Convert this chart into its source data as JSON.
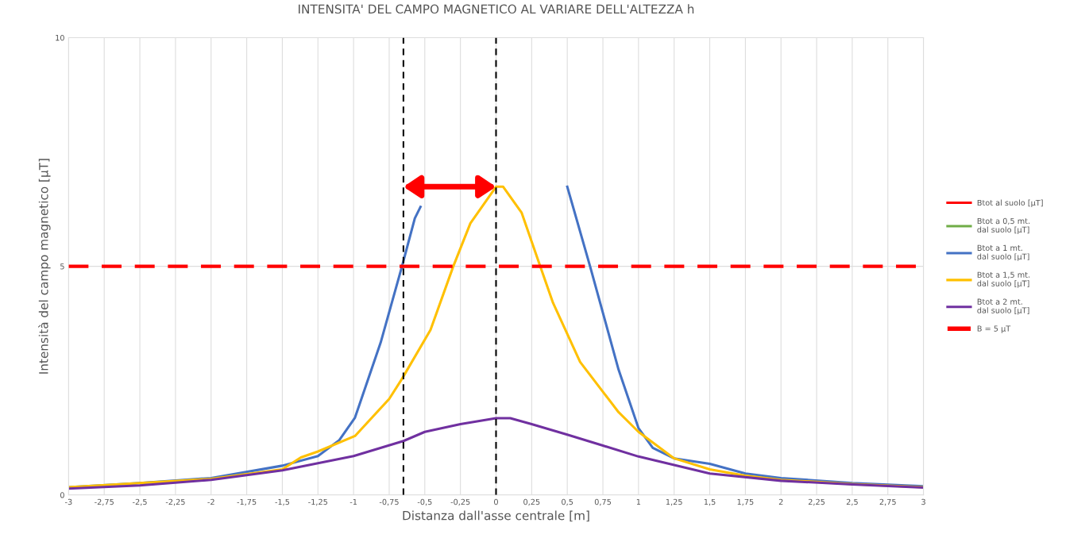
{
  "chart_data": {
    "type": "line",
    "title": "INTENSITA' DEL CAMPO MAGNETICO AL VARIARE DELL'ALTEZZA h",
    "xlabel": "Distanza dall'asse centrale [m]",
    "ylabel": "Intensità del campo magnetico [µT]",
    "xlim": [
      -3,
      3
    ],
    "xticks": [
      {
        "value": -3,
        "label": "-3"
      },
      {
        "value": -2.75,
        "label": "-2,75"
      },
      {
        "value": -2.5,
        "label": "-2,5"
      },
      {
        "value": -2.25,
        "label": "-2,25"
      },
      {
        "value": -2,
        "label": "-2"
      },
      {
        "value": -1.75,
        "label": "-1,75"
      },
      {
        "value": -1.5,
        "label": "-1,5"
      },
      {
        "value": -1.25,
        "label": "-1,25"
      },
      {
        "value": -1,
        "label": "-1"
      },
      {
        "value": -0.75,
        "label": "-0,75"
      },
      {
        "value": -0.5,
        "label": "-0,5"
      },
      {
        "value": -0.25,
        "label": "-0,25"
      },
      0,
      {
        "value": 0.25,
        "label": "0,25"
      },
      {
        "value": 0.5,
        "label": "0,5"
      },
      {
        "value": 0.75,
        "label": "0,75"
      },
      1,
      {
        "value": 1.25,
        "label": "1,25"
      },
      {
        "value": 1.5,
        "label": "1,5"
      },
      {
        "value": 1.75,
        "label": "1,75"
      },
      2,
      {
        "value": 2.25,
        "label": "2,25"
      },
      {
        "value": 2.5,
        "label": "2,5"
      },
      {
        "value": 2.75,
        "label": "2,75"
      },
      3
    ],
    "ylim": [
      0,
      10
    ],
    "yticks": [
      0,
      5,
      10
    ],
    "grid": true,
    "legend": "right",
    "marker": "none",
    "series": [
      {
        "name": "Btot al suolo [µT]",
        "color": "#ff0000"
      },
      {
        "name": "Btot a 0,5 mt.\ndal suolo [µT]",
        "color": "#70ad47"
      },
      {
        "name": "Btot a 1 mt.\ndal suolo [µT]",
        "color": "#4472c4",
        "x": [
          -3,
          -2.5,
          -2,
          -1.5,
          -1.25,
          -1.1,
          -0.99,
          -0.81,
          -0.66,
          -0.57,
          -0.53,
          0,
          0.5,
          0.66,
          0.86,
          1,
          1.1,
          1.25,
          1.5,
          1.75,
          2,
          2.5,
          3
        ],
        "values": [
          0.17,
          0.26,
          0.37,
          0.64,
          0.85,
          1.2,
          1.69,
          3.33,
          5.0,
          6.05,
          6.3,
          null,
          6.74,
          5.0,
          2.74,
          1.46,
          1.03,
          0.8,
          0.68,
          0.47,
          0.37,
          0.26,
          0.19
        ]
      },
      {
        "name": "Btot a 1,5 mt.\ndal suolo [µT]",
        "color": "#ffc000",
        "x": [
          -3,
          -2.5,
          -2,
          -1.5,
          -1.37,
          -1.25,
          -0.99,
          -0.75,
          -0.66,
          -0.46,
          -0.3,
          -0.18,
          0,
          0.05,
          0.18,
          0.31,
          0.4,
          0.59,
          0.86,
          1,
          1.25,
          1.5,
          1.75,
          2,
          2.5,
          3
        ],
        "values": [
          0.17,
          0.26,
          0.35,
          0.56,
          0.82,
          0.95,
          1.29,
          2.1,
          2.54,
          3.61,
          5.0,
          5.94,
          6.74,
          6.74,
          6.17,
          5.0,
          4.2,
          2.91,
          1.81,
          1.38,
          0.8,
          0.56,
          0.42,
          0.33,
          0.24,
          0.17
        ]
      },
      {
        "name": "Btot a 2 mt.\ndal suolo [µT]",
        "color": "#7030a0",
        "x": [
          -3,
          -2.5,
          -2,
          -1.5,
          -1,
          -0.65,
          -0.5,
          -0.25,
          0,
          0.1,
          0.25,
          0.5,
          0.75,
          1,
          1.5,
          2,
          2.5,
          3
        ],
        "values": [
          0.14,
          0.21,
          0.33,
          0.54,
          0.85,
          1.18,
          1.38,
          1.55,
          1.68,
          1.68,
          1.55,
          1.32,
          1.08,
          0.84,
          0.47,
          0.31,
          0.23,
          0.16
        ]
      }
    ],
    "ref_lines": [
      {
        "axis": "y",
        "value": 5,
        "label": "B = 5 µT",
        "color": "#ff0000",
        "line_style": "dashed"
      },
      {
        "axis": "x",
        "value": -0.65,
        "color": "#000000",
        "line_style": "dashed"
      },
      {
        "axis": "x",
        "value": 0,
        "color": "#000000",
        "line_style": "dashed"
      }
    ]
  }
}
